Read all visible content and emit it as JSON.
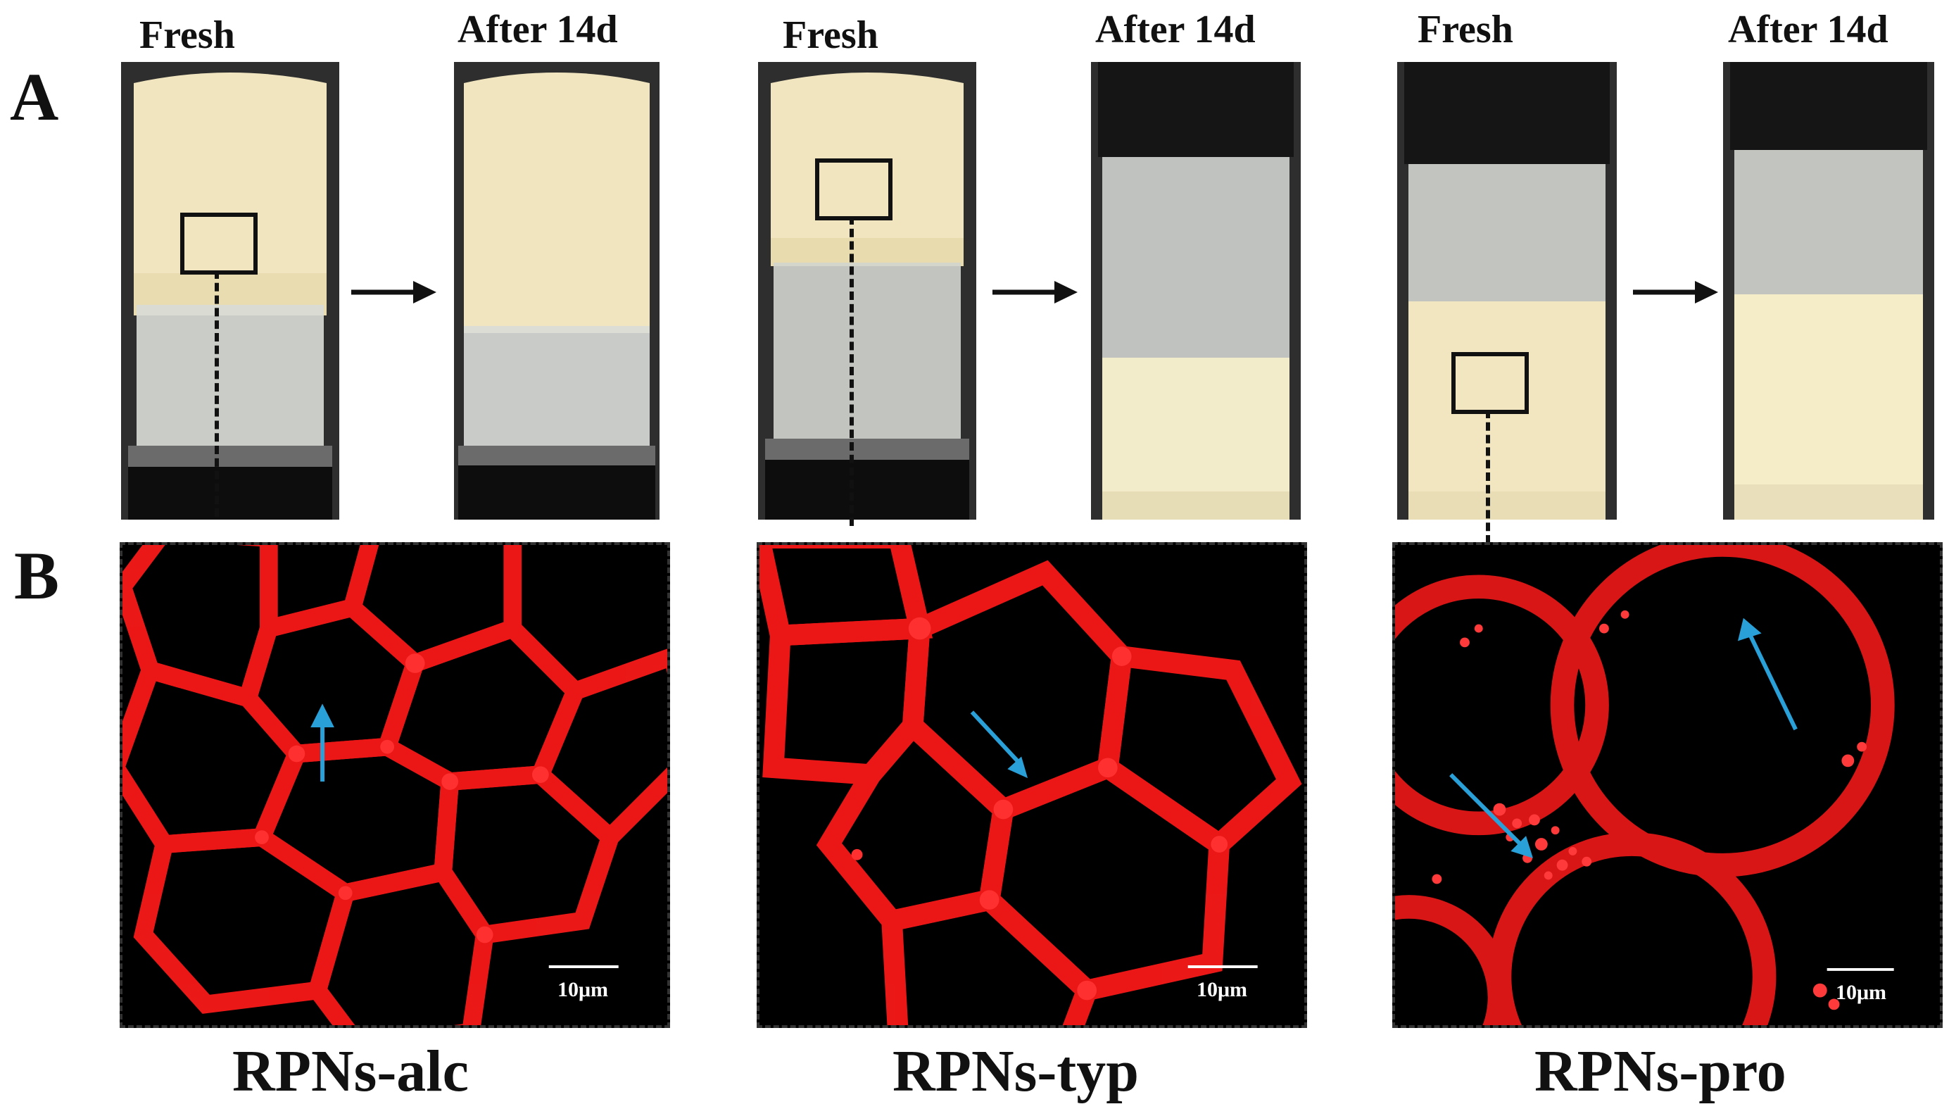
{
  "panels": {
    "a_label": "A",
    "b_label": "B"
  },
  "vial_titles": {
    "fresh": "Fresh",
    "after": "After 14d"
  },
  "samples": [
    {
      "label": "RPNs-alc"
    },
    {
      "label": "RPNs-typ"
    },
    {
      "label": "RPNs-pro"
    }
  ],
  "scale_bar": "10μm",
  "colors": {
    "emulsion": "#f1e7c4",
    "fluorescence": "#ff1a1a",
    "annotation_arrow": "#2aa0d8"
  }
}
